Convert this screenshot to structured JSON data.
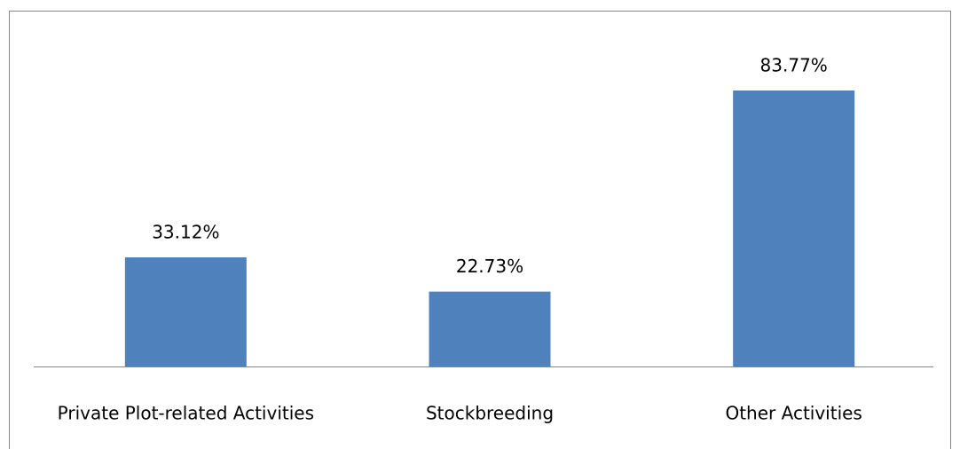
{
  "chart_data": {
    "type": "bar",
    "categories": [
      "Private Plot-related Activities",
      "Stockbreeding",
      "Other Activities"
    ],
    "values": [
      33.12,
      22.73,
      83.77
    ],
    "value_labels": [
      "33.12%",
      "22.73%",
      "83.77%"
    ],
    "color": "#4f81bd"
  }
}
